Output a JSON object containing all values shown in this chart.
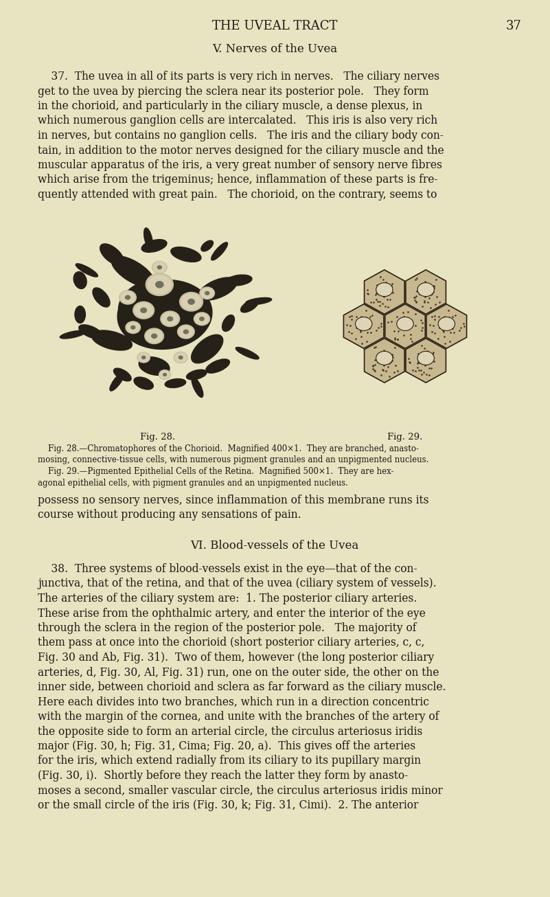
{
  "background_color": "#e8e3c0",
  "page_number": "37",
  "header": "THE UVEAL TRACT",
  "fig28_label": "Fig. 28.",
  "fig29_label": "Fig. 29.",
  "text_color": "#1a1a1a",
  "font_size_body": 11.2,
  "font_size_caption": 8.5,
  "font_size_header": 13.0,
  "font_size_section": 12.0,
  "font_size_figlabel": 9.5,
  "lines_37": [
    "    37.  The uvea in all of its parts is very rich in nerves.   The ciliary nerves",
    "get to the uvea by piercing the sclera near its posterior pole.   They form",
    "in the chorioid, and particularly in the ciliary muscle, a dense plexus, in",
    "which numerous ganglion cells are intercalated.   This iris is also very rich",
    "in nerves, but contains no ganglion cells.   The iris and the ciliary body con-",
    "tain, in addition to the motor nerves designed for the ciliary muscle and the",
    "muscular apparatus of the iris, a very great number of sensory nerve fibres",
    "which arise from the trigeminus; hence, inflammation of these parts is fre-",
    "quently attended with great pain.   The chorioid, on the contrary, seems to"
  ],
  "lines_continue": [
    "possess no sensory nerves, since inflammation of this membrane runs its",
    "course without producing any sensations of pain."
  ],
  "caption_lines": [
    "    Fig. 28.—Chromatophores of the Chorioid.  Magnified 400×1.  They are branched, anasto-",
    "mosing, connective-tissue cells, with numerous pigment granules and an unpigmented nucleus.",
    "    Fig. 29.—Pigmented Epithelial Cells of the Retina.  Magnified 500×1.  They are hex-",
    "agonal epithelial cells, with pigment granules and an unpigmented nucleus."
  ],
  "lines_38": [
    "    38.  Three systems of blood-vessels exist in the eye—that of the con-",
    "junctiva, that of the retina, and that of the uvea (ciliary system of vessels).",
    "The arteries of the ciliary system are:  1. The posterior ciliary arteries.",
    "These arise from the ophthalmic artery, and enter the interior of the eye",
    "through the sclera in the region of the posterior pole.   The majority of",
    "them pass at once into the chorioid (short posterior ciliary arteries, c, c,",
    "Fig. 30 and Ab, Fig. 31).  Two of them, however (the long posterior ciliary",
    "arteries, d, Fig. 30, Al, Fig. 31) run, one on the outer side, the other on the",
    "inner side, between chorioid and sclera as far forward as the ciliary muscle.",
    "Here each divides into two branches, which run in a direction concentric",
    "with the margin of the cornea, and unite with the branches of the artery of",
    "the opposite side to form an arterial circle, the circulus arteriosus iridis",
    "major (Fig. 30, h; Fig. 31, Cima; Fig. 20, a).  This gives off the arteries",
    "for the iris, which extend radially from its ciliary to its pupillary margin",
    "(Fig. 30, i).  Shortly before they reach the latter they form by anasto-",
    "moses a second, smaller vascular circle, the circulus arteriosus iridis minor",
    "or the small circle of the iris (Fig. 30, k; Fig. 31, Cimi).  2. The anterior"
  ]
}
